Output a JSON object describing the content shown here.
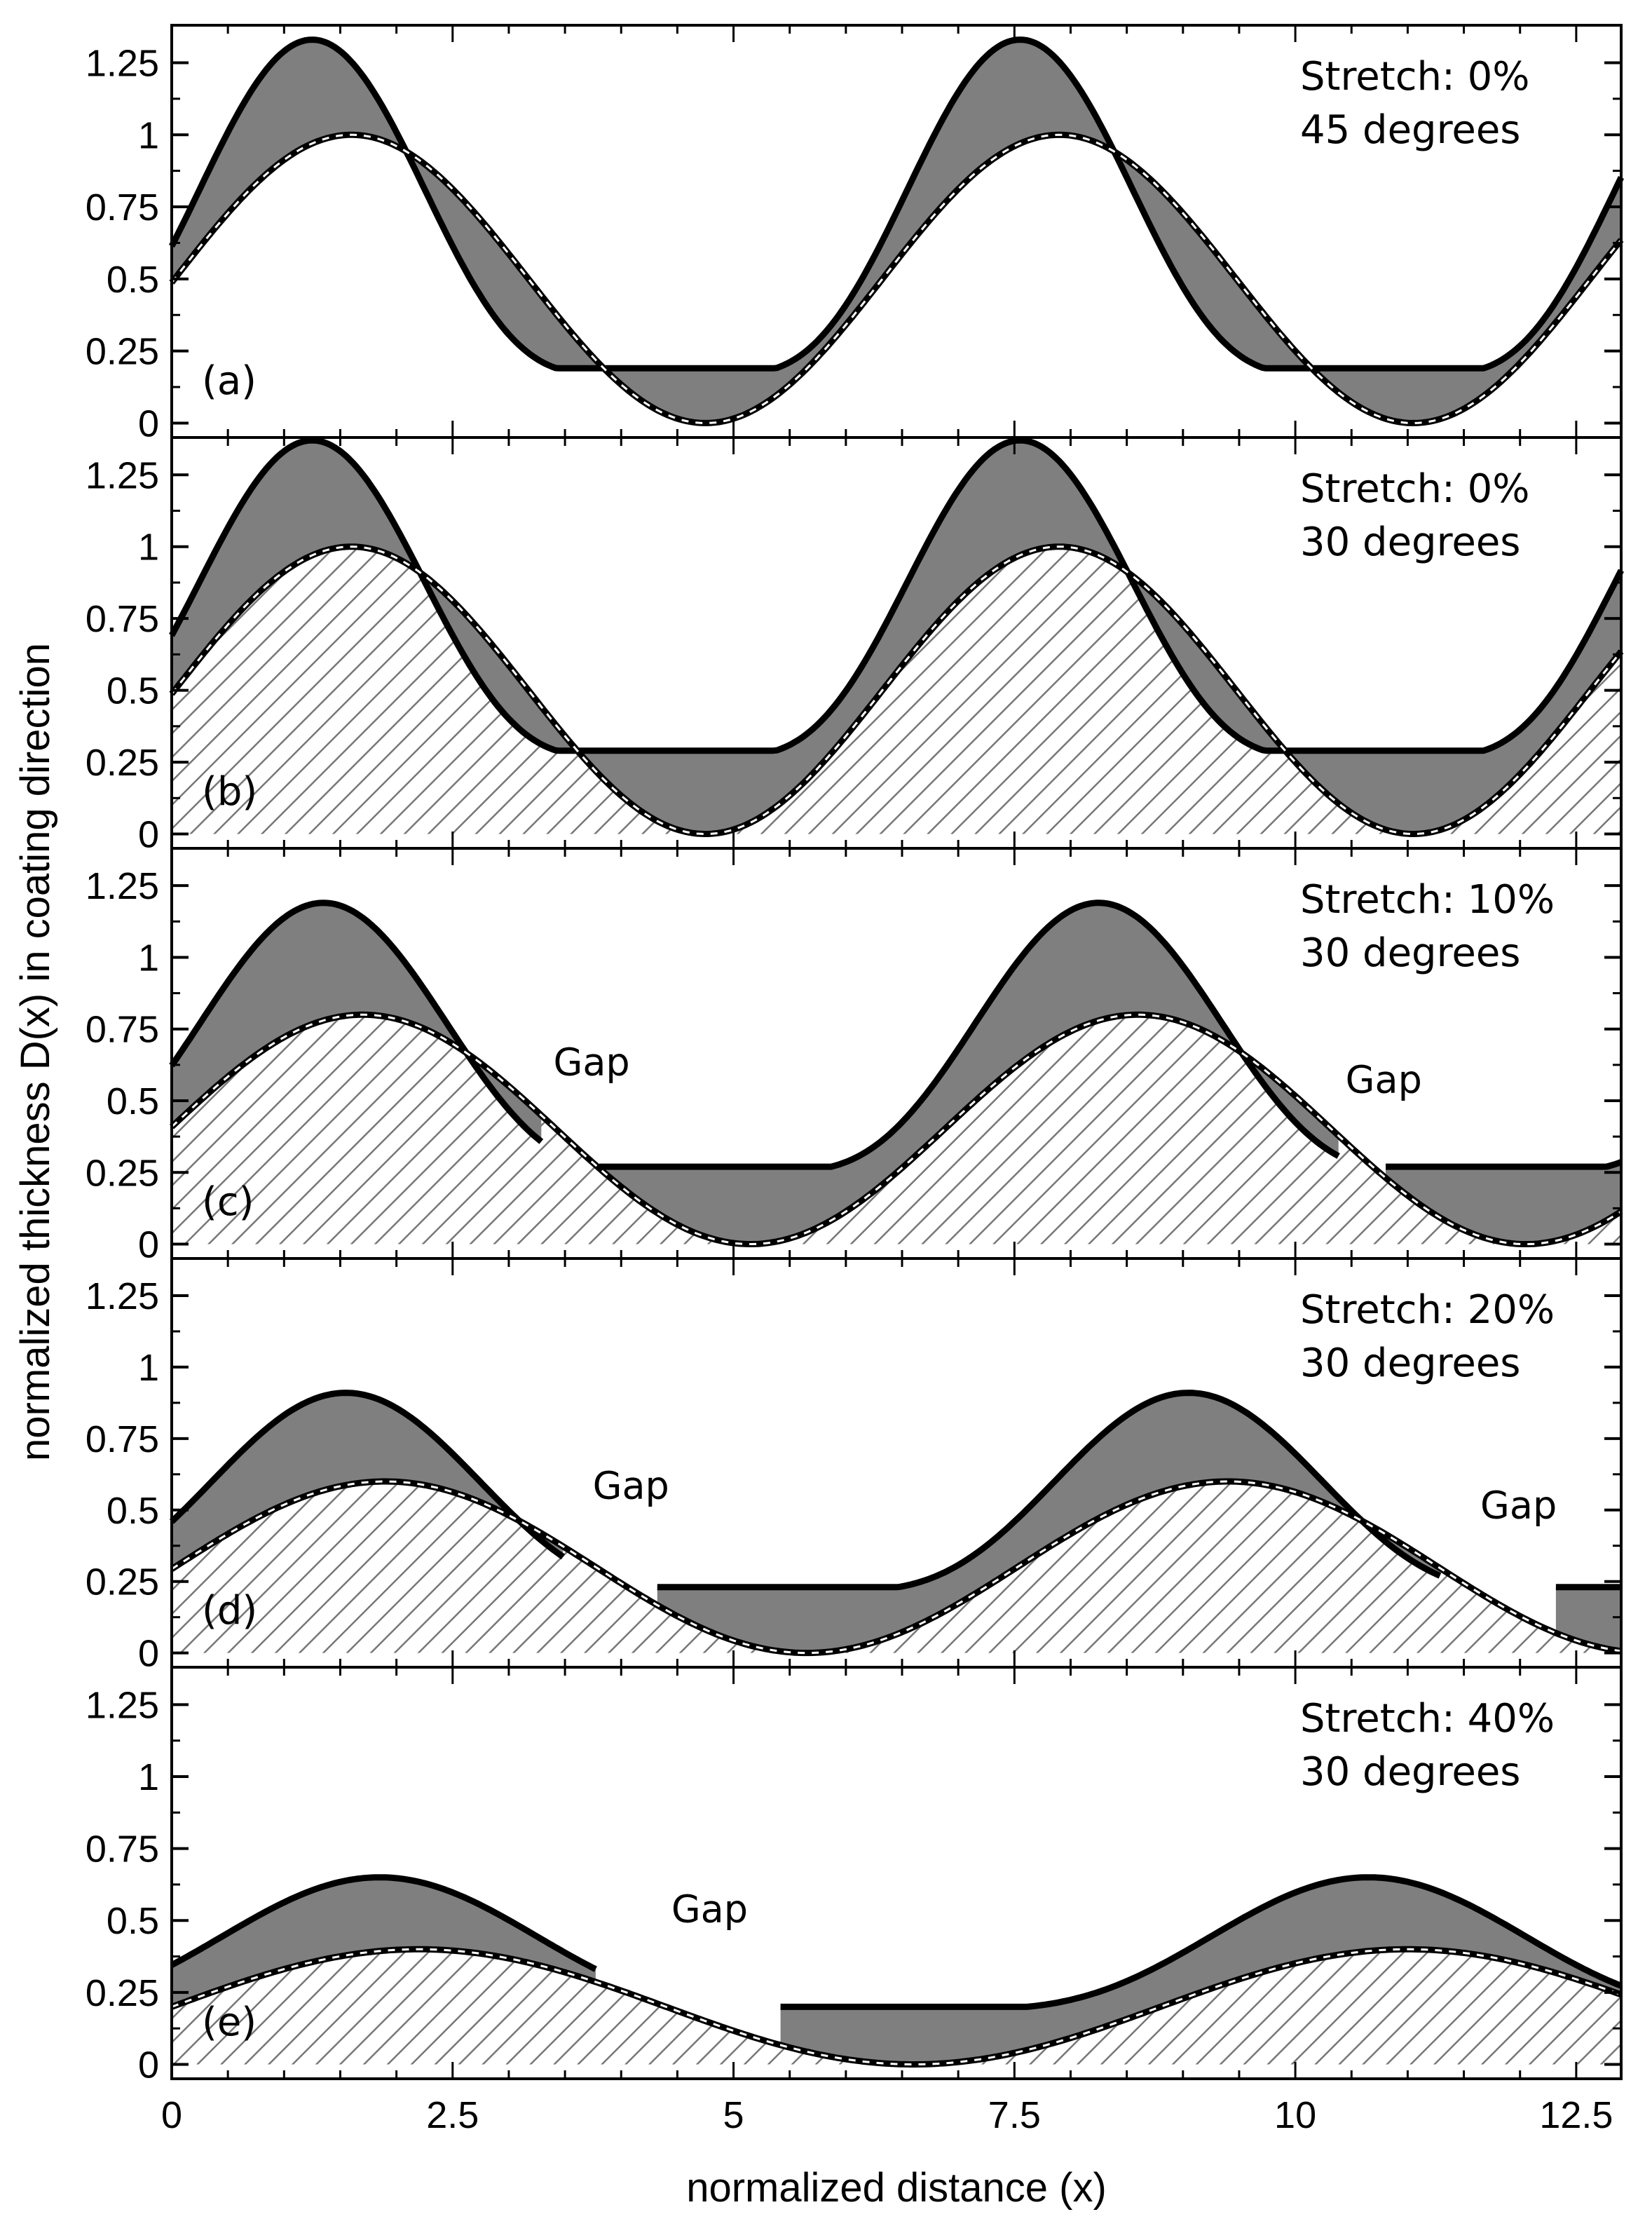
{
  "chart_data": {
    "type": "area",
    "xlabel": "normalized distance (x)",
    "ylabel": "normalized thickness D(x) in coating direction",
    "xlim": [
      0,
      12.9
    ],
    "x_ticks": [
      "0",
      "2.5",
      "5",
      "7.5",
      "10",
      "12.5"
    ],
    "x_tick_values": [
      0,
      2.5,
      5,
      7.5,
      10,
      12.5
    ],
    "ylim": [
      -0.05,
      1.38
    ],
    "y_ticks": [
      "0",
      "0.25",
      "0.5",
      "0.75",
      "1",
      "1.25"
    ],
    "y_tick_values": [
      0,
      0.25,
      0.5,
      0.75,
      1,
      1.25
    ],
    "gap_label": "Gap",
    "panels": [
      {
        "label": "(a)",
        "stretch_text": "Stretch: 0%",
        "angle_text": "45 degrees",
        "stretch": 0,
        "amplitude": 0.5,
        "hatched": false,
        "lower_peak_x": [
          1.6,
          7.9
        ],
        "upper_peak": 1.33,
        "upper_min": 0.19,
        "gaps": []
      },
      {
        "label": "(b)",
        "stretch_text": "Stretch: 0%",
        "angle_text": "30 degrees",
        "stretch": 0,
        "amplitude": 0.5,
        "hatched": true,
        "lower_peak_x": [
          1.6,
          7.9
        ],
        "upper_peak": 1.37,
        "upper_min": 0.29,
        "gaps": []
      },
      {
        "label": "(c)",
        "stretch_text": "Stretch: 10%",
        "angle_text": "30 degrees",
        "stretch": 0.1,
        "amplitude": 0.4,
        "hatched": true,
        "lower_peak_x": [
          1.7,
          8.6
        ],
        "upper_peak": 1.19,
        "upper_min": 0.27,
        "gaps": [
          [
            3.3,
            3.8
          ],
          [
            10.4,
            10.8
          ]
        ]
      },
      {
        "label": "(d)",
        "stretch_text": "Stretch: 20%",
        "angle_text": "30 degrees",
        "stretch": 0.2,
        "amplitude": 0.3,
        "hatched": true,
        "lower_peak_x": [
          1.9,
          9.4
        ],
        "upper_peak": 0.91,
        "upper_min": 0.23,
        "gaps": [
          [
            3.5,
            4.3
          ],
          [
            11.3,
            12.3
          ]
        ]
      },
      {
        "label": "(e)",
        "stretch_text": "Stretch: 40%",
        "angle_text": "30 degrees",
        "stretch": 0.4,
        "amplitude": 0.2,
        "hatched": true,
        "lower_peak_x": [
          2.2,
          11.0
        ],
        "upper_peak": 0.65,
        "upper_min": 0.2,
        "gaps": [
          [
            3.8,
            5.4
          ]
        ]
      }
    ]
  }
}
